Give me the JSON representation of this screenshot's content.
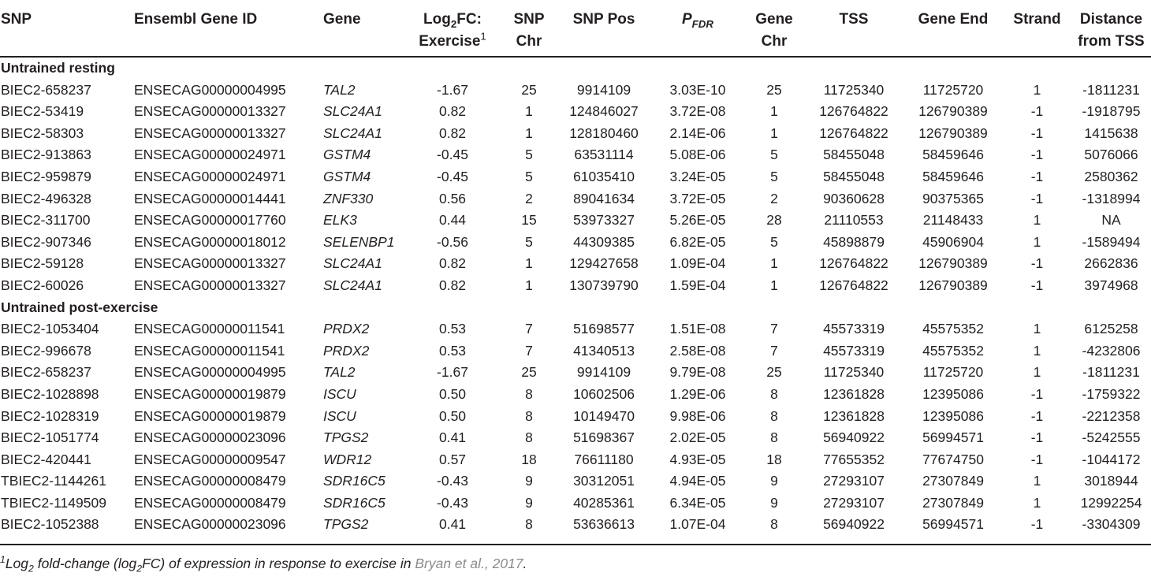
{
  "columns": [
    {
      "key": "snp",
      "lines": [
        "SNP"
      ]
    },
    {
      "key": "gene_id",
      "lines": [
        "Ensembl Gene ID"
      ]
    },
    {
      "key": "gene",
      "lines": [
        "Gene"
      ]
    },
    {
      "key": "logfc",
      "lines": [
        "Log2FC:",
        "Exercise1"
      ]
    },
    {
      "key": "snp_chr",
      "lines": [
        "SNP",
        "Chr"
      ]
    },
    {
      "key": "snp_pos",
      "lines": [
        "SNP Pos"
      ]
    },
    {
      "key": "pfdr",
      "lines": [
        "PFDR"
      ]
    },
    {
      "key": "gene_chr",
      "lines": [
        "Gene",
        "Chr"
      ]
    },
    {
      "key": "tss",
      "lines": [
        "TSS"
      ]
    },
    {
      "key": "gene_end",
      "lines": [
        "Gene End"
      ]
    },
    {
      "key": "strand",
      "lines": [
        "Strand"
      ]
    },
    {
      "key": "distance",
      "lines": [
        "Distance",
        "from TSS"
      ]
    }
  ],
  "sections": [
    {
      "title": "Untrained resting",
      "rows": [
        [
          "BIEC2-658237",
          "ENSECAG00000004995",
          "TAL2",
          "-1.67",
          "25",
          "9914109",
          "3.03E-10",
          "25",
          "11725340",
          "11725720",
          "1",
          "-1811231"
        ],
        [
          "BIEC2-53419",
          "ENSECAG00000013327",
          "SLC24A1",
          "0.82",
          "1",
          "124846027",
          "3.72E-08",
          "1",
          "126764822",
          "126790389",
          "-1",
          "-1918795"
        ],
        [
          "BIEC2-58303",
          "ENSECAG00000013327",
          "SLC24A1",
          "0.82",
          "1",
          "128180460",
          "2.14E-06",
          "1",
          "126764822",
          "126790389",
          "-1",
          "1415638"
        ],
        [
          "BIEC2-913863",
          "ENSECAG00000024971",
          "GSTM4",
          "-0.45",
          "5",
          "63531114",
          "5.08E-06",
          "5",
          "58455048",
          "58459646",
          "-1",
          "5076066"
        ],
        [
          "BIEC2-959879",
          "ENSECAG00000024971",
          "GSTM4",
          "-0.45",
          "5",
          "61035410",
          "3.24E-05",
          "5",
          "58455048",
          "58459646",
          "-1",
          "2580362"
        ],
        [
          "BIEC2-496328",
          "ENSECAG00000014441",
          "ZNF330",
          "0.56",
          "2",
          "89041634",
          "3.72E-05",
          "2",
          "90360628",
          "90375365",
          "-1",
          "-1318994"
        ],
        [
          "BIEC2-311700",
          "ENSECAG00000017760",
          "ELK3",
          "0.44",
          "15",
          "53973327",
          "5.26E-05",
          "28",
          "21110553",
          "21148433",
          "1",
          "NA"
        ],
        [
          "BIEC2-907346",
          "ENSECAG00000018012",
          "SELENBP1",
          "-0.56",
          "5",
          "44309385",
          "6.82E-05",
          "5",
          "45898879",
          "45906904",
          "1",
          "-1589494"
        ],
        [
          "BIEC2-59128",
          "ENSECAG00000013327",
          "SLC24A1",
          "0.82",
          "1",
          "129427658",
          "1.09E-04",
          "1",
          "126764822",
          "126790389",
          "-1",
          "2662836"
        ],
        [
          "BIEC2-60026",
          "ENSECAG00000013327",
          "SLC24A1",
          "0.82",
          "1",
          "130739790",
          "1.59E-04",
          "1",
          "126764822",
          "126790389",
          "-1",
          "3974968"
        ]
      ]
    },
    {
      "title": "Untrained post-exercise",
      "rows": [
        [
          "BIEC2-1053404",
          "ENSECAG00000011541",
          "PRDX2",
          "0.53",
          "7",
          "51698577",
          "1.51E-08",
          "7",
          "45573319",
          "45575352",
          "1",
          "6125258"
        ],
        [
          "BIEC2-996678",
          "ENSECAG00000011541",
          "PRDX2",
          "0.53",
          "7",
          "41340513",
          "2.58E-08",
          "7",
          "45573319",
          "45575352",
          "1",
          "-4232806"
        ],
        [
          "BIEC2-658237",
          "ENSECAG00000004995",
          "TAL2",
          "-1.67",
          "25",
          "9914109",
          "9.79E-08",
          "25",
          "11725340",
          "11725720",
          "1",
          "-1811231"
        ],
        [
          "BIEC2-1028898",
          "ENSECAG00000019879",
          "ISCU",
          "0.50",
          "8",
          "10602506",
          "1.29E-06",
          "8",
          "12361828",
          "12395086",
          "-1",
          "-1759322"
        ],
        [
          "BIEC2-1028319",
          "ENSECAG00000019879",
          "ISCU",
          "0.50",
          "8",
          "10149470",
          "9.98E-06",
          "8",
          "12361828",
          "12395086",
          "-1",
          "-2212358"
        ],
        [
          "BIEC2-1051774",
          "ENSECAG00000023096",
          "TPGS2",
          "0.41",
          "8",
          "51698367",
          "2.02E-05",
          "8",
          "56940922",
          "56994571",
          "-1",
          "-5242555"
        ],
        [
          "BIEC2-420441",
          "ENSECAG00000009547",
          "WDR12",
          "0.57",
          "18",
          "76611180",
          "4.93E-05",
          "18",
          "77655352",
          "77674750",
          "-1",
          "-1044172"
        ],
        [
          "TBIEC2-1144261",
          "ENSECAG00000008479",
          "SDR16C5",
          "-0.43",
          "9",
          "30312051",
          "4.94E-05",
          "9",
          "27293107",
          "27307849",
          "1",
          "3018944"
        ],
        [
          "TBIEC2-1149509",
          "ENSECAG00000008479",
          "SDR16C5",
          "-0.43",
          "9",
          "40285361",
          "6.34E-05",
          "9",
          "27293107",
          "27307849",
          "1",
          "12992254"
        ],
        [
          "BIEC2-1052388",
          "ENSECAG00000023096",
          "TPGS2",
          "0.41",
          "8",
          "53636613",
          "1.07E-04",
          "8",
          "56940922",
          "56994571",
          "-1",
          "-3304309"
        ]
      ]
    }
  ],
  "footnote": {
    "text": "1Log2 fold-change (log2FC) of expression in response to exercise in ",
    "citation": "Bryan et al., 2017",
    "end": "."
  }
}
